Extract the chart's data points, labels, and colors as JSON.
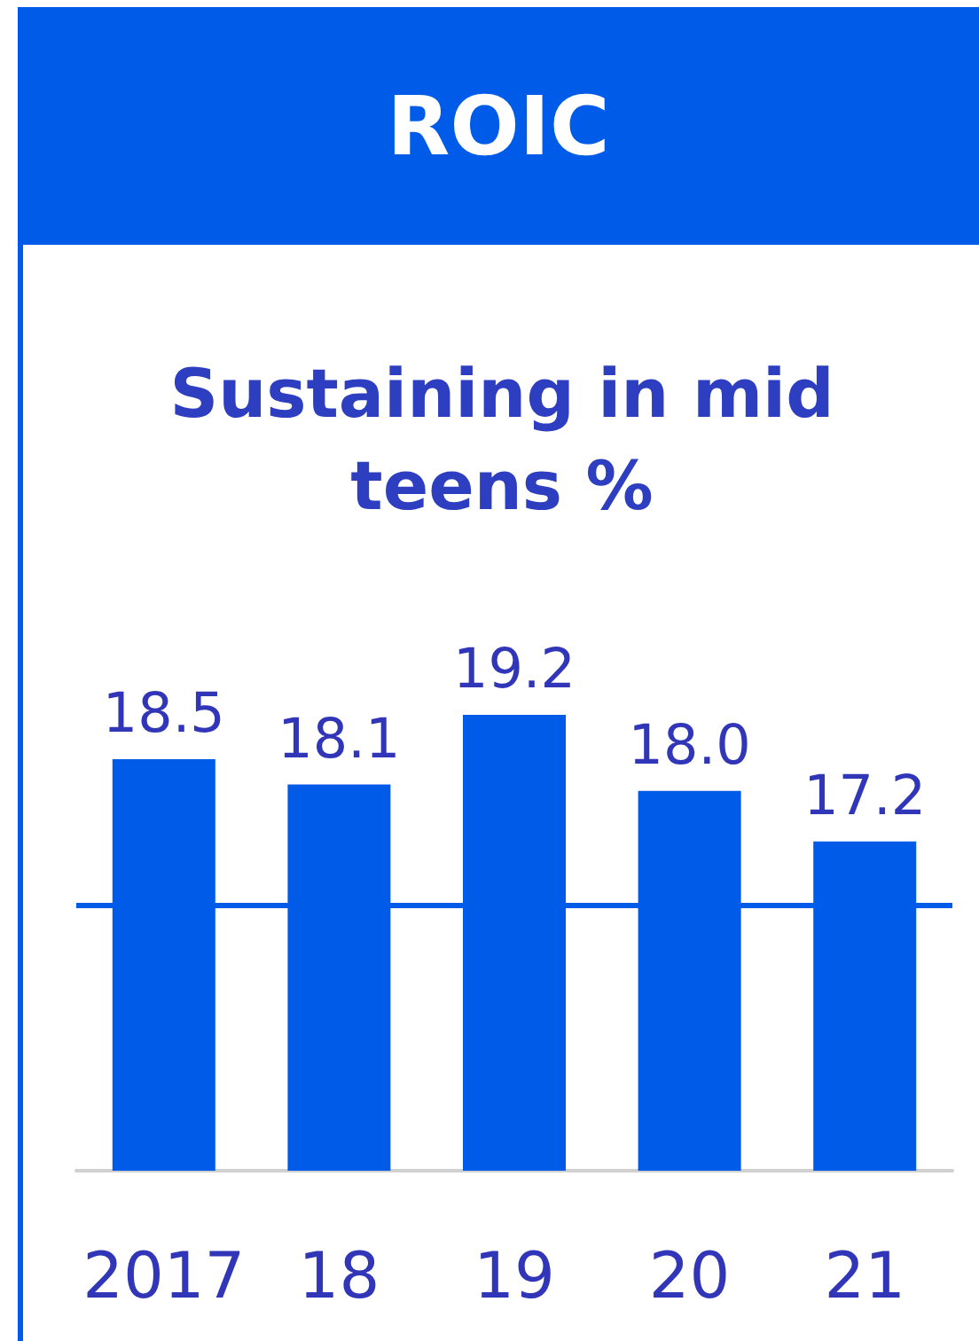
{
  "chart_data": {
    "type": "bar",
    "title": "ROIC",
    "subtitle": "Sustaining in mid teens %",
    "categories": [
      "2017",
      "18",
      "19",
      "20",
      "21"
    ],
    "values": [
      18.5,
      18.1,
      19.2,
      18.0,
      17.2
    ],
    "value_labels": [
      "18.5",
      "18.1",
      "19.2",
      "18.0",
      "17.2"
    ],
    "color": "#005ce8",
    "ylim": [
      12,
      19.2
    ],
    "tick_labels": "x",
    "grid": false,
    "ref_lines": [
      {
        "axis": "y",
        "value": 16.2,
        "label": null,
        "color": "#005ce8"
      }
    ]
  }
}
